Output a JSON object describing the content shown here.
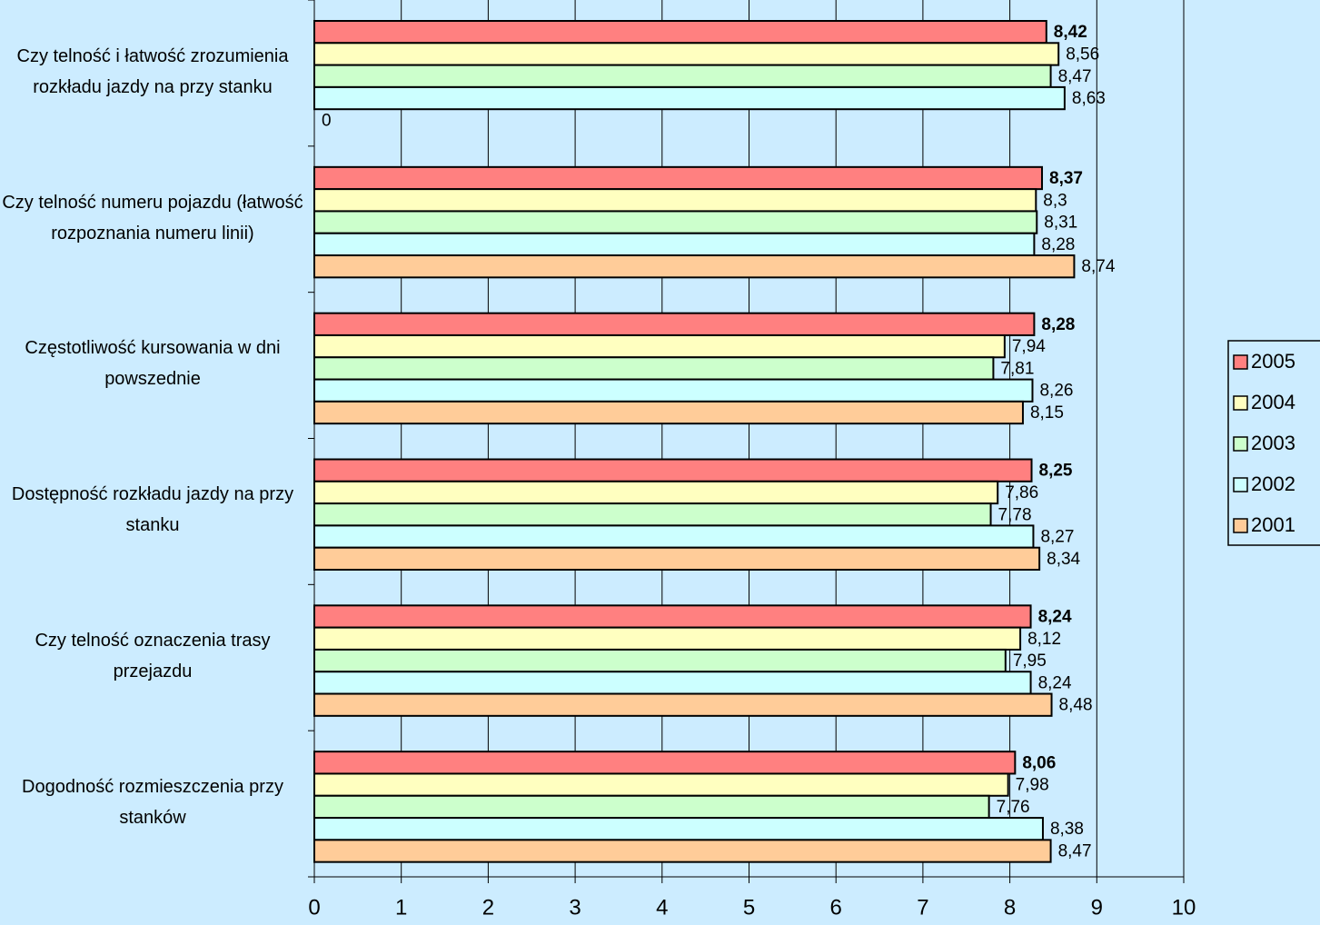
{
  "chart_data": {
    "type": "bar",
    "orientation": "horizontal",
    "categories": [
      "Czy telność i łatwość zrozumienia rozkładu jazdy na przy stanku",
      "Czy telność numeru pojazdu (łatwość rozpoznania numeru linii)",
      "Częstotliwość kursowania w dni powszednie",
      "Dostępność rozkładu jazdy na przy stanku",
      "Czy telność oznaczenia trasy przejazdu",
      "Dogodność rozmieszczenia przy stanków"
    ],
    "series": [
      {
        "name": "2005",
        "color": "#FF8080",
        "values": [
          8.42,
          8.37,
          8.28,
          8.25,
          8.24,
          8.06
        ],
        "value_labels": [
          "8,42",
          "8,37",
          "8,28",
          "8,25",
          "8,24",
          "8,06"
        ]
      },
      {
        "name": "2004",
        "color": "#FFFFC0",
        "values": [
          8.56,
          8.3,
          7.94,
          7.86,
          8.12,
          7.98
        ],
        "value_labels": [
          "8,56",
          "8,3",
          "7,94",
          "7,86",
          "8,12",
          "7,98"
        ]
      },
      {
        "name": "2003",
        "color": "#CCFFCC",
        "values": [
          8.47,
          8.31,
          7.81,
          7.78,
          7.95,
          7.76
        ],
        "value_labels": [
          "8,47",
          "8,31",
          "7,81",
          "7,78",
          "7,95",
          "7,76"
        ]
      },
      {
        "name": "2002",
        "color": "#CCFFFF",
        "values": [
          8.63,
          8.28,
          8.26,
          8.27,
          8.24,
          8.38
        ],
        "value_labels": [
          "8,63",
          "8,28",
          "8,26",
          "8,27",
          "8,24",
          "8,38"
        ]
      },
      {
        "name": "2001",
        "color": "#FFCC99",
        "values": [
          0,
          8.74,
          8.15,
          8.34,
          8.48,
          8.47
        ],
        "value_labels": [
          "0",
          "8,74",
          "8,15",
          "8,34",
          "8,48",
          "8,47"
        ]
      }
    ],
    "xlim": [
      0,
      10
    ],
    "xticks": [
      0,
      1,
      2,
      3,
      4,
      5,
      6,
      7,
      8,
      9,
      10
    ],
    "grid": true,
    "legend": "right",
    "background": "#CCECFF"
  }
}
